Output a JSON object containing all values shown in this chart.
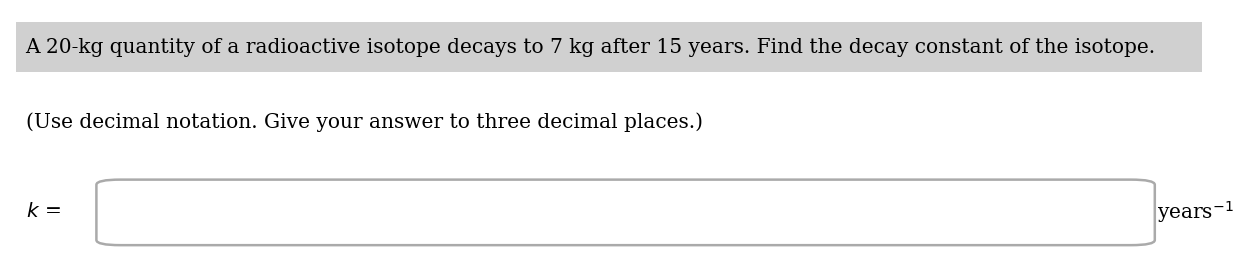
{
  "line1": "A 20-kg quantity of a radioactive isotope decays to 7 kg after 15 years. Find the decay constant of the isotope.",
  "line2": "(Use decimal notation. Give your answer to three decimal places.)",
  "label_k": "$k$ =",
  "label_units": "years$^{-1}$",
  "highlight_color": "#d0d0d0",
  "box_fill": "#ffffff",
  "box_edge": "#aaaaaa",
  "background_color": "#ffffff",
  "text_color": "#000000",
  "font_size_main": 14.5,
  "font_size_label": 14.5
}
